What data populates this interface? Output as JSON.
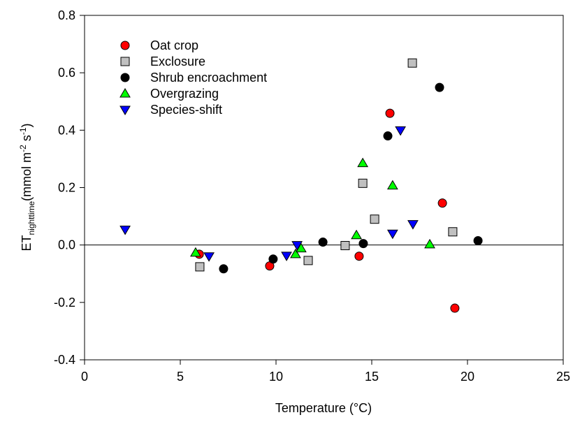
{
  "chart_data": {
    "type": "scatter",
    "x_label": "Temperature (°C)",
    "ylabel_parts": [
      "ET",
      "nighttime",
      "(mmol m",
      "-2",
      " s",
      "-1",
      ")"
    ],
    "xlim": [
      0,
      25
    ],
    "ylim": [
      -0.4,
      0.8
    ],
    "xticks": [
      0,
      5,
      10,
      15,
      20,
      25
    ],
    "yticks": [
      {
        "value": -0.4,
        "label": "-0.4"
      },
      {
        "value": -0.2,
        "label": "-0.2"
      },
      {
        "value": 0,
        "label": "0.0"
      },
      {
        "value": 0.2,
        "label": "0.2"
      },
      {
        "value": 0.4,
        "label": "0.4"
      },
      {
        "value": 0.6,
        "label": "0.6"
      },
      {
        "value": 0.8,
        "label": "0.8"
      }
    ],
    "reference_line": 0,
    "legend": "upper left",
    "series": [
      {
        "name": "Oat crop",
        "color": "#ff0000",
        "marker": "circle",
        "x": [
          5.99,
          9.67,
          14.34,
          15.95,
          18.69,
          19.34
        ],
        "values": [
          -0.032,
          -0.073,
          -0.039,
          0.459,
          0.146,
          -0.22
        ]
      },
      {
        "name": "Exclosure",
        "color": "#c0c0c0",
        "marker": "square",
        "x": [
          6.02,
          11.68,
          13.61,
          14.53,
          15.15,
          17.12,
          19.23
        ],
        "values": [
          -0.076,
          -0.054,
          -0.002,
          0.215,
          0.09,
          0.634,
          0.046
        ]
      },
      {
        "name": "Shrub encroachment",
        "color": "#000000",
        "marker": "circle",
        "x": [
          7.26,
          9.85,
          12.45,
          14.56,
          15.84,
          18.54,
          20.55
        ],
        "values": [
          -0.083,
          -0.049,
          0.01,
          0.005,
          0.38,
          0.549,
          0.015
        ]
      },
      {
        "name": "Overgrazing",
        "color": "#00ff00",
        "marker": "triangle-up",
        "x": [
          5.8,
          11.02,
          11.31,
          14.2,
          14.53,
          16.09,
          18.03
        ],
        "values": [
          -0.027,
          -0.032,
          -0.012,
          0.034,
          0.285,
          0.207,
          0.002
        ]
      },
      {
        "name": "Species-shift",
        "color": "#0000ff",
        "marker": "triangle-down",
        "x": [
          2.12,
          6.5,
          10.55,
          11.1,
          16.09,
          16.5,
          17.15
        ],
        "values": [
          0.054,
          -0.039,
          -0.037,
          0.0,
          0.04,
          0.4,
          0.073
        ]
      }
    ]
  }
}
